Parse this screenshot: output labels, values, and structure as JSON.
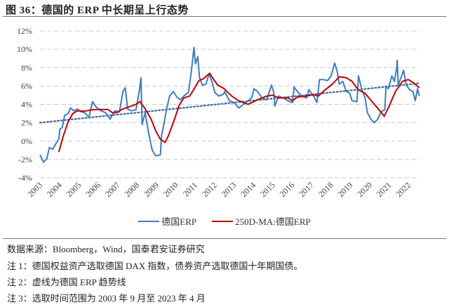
{
  "title": "图 36：德国的 ERP 中长期呈上行态势",
  "chart_data": {
    "type": "line",
    "title": "",
    "xlabel": "",
    "ylabel": "",
    "ylim": [
      -4,
      12
    ],
    "xlim": [
      2003.75,
      2023.33
    ],
    "y_ticks": [
      "-4%",
      "-2%",
      "0%",
      "2%",
      "4%",
      "6%",
      "8%",
      "10%",
      "12%"
    ],
    "y_tick_values": [
      -4,
      -2,
      0,
      2,
      4,
      6,
      8,
      10,
      12
    ],
    "x_ticks": [
      "2003",
      "2004",
      "2005",
      "2006",
      "2007",
      "2008",
      "2009",
      "2010",
      "2011",
      "2012",
      "2013",
      "2014",
      "2015",
      "2016",
      "2017",
      "2018",
      "2019",
      "2020",
      "2021",
      "2022"
    ],
    "grid": "horizontal dashed",
    "legend_position": "bottom",
    "series": [
      {
        "name": "德国ERP",
        "color": "#3c7cc0",
        "points": [
          [
            2003.75,
            -1.5
          ],
          [
            2003.93,
            -2.3
          ],
          [
            2004.11,
            -1.9
          ],
          [
            2004.23,
            -0.7
          ],
          [
            2004.41,
            -0.9
          ],
          [
            2004.59,
            -0.2
          ],
          [
            2004.72,
            0.2
          ],
          [
            2004.78,
            1.3
          ],
          [
            2004.9,
            1.5
          ],
          [
            2005.02,
            2.8
          ],
          [
            2005.2,
            3.0
          ],
          [
            2005.32,
            3.6
          ],
          [
            2005.5,
            3.3
          ],
          [
            2005.68,
            3.5
          ],
          [
            2005.86,
            3.2
          ],
          [
            2006.04,
            3.1
          ],
          [
            2006.28,
            2.6
          ],
          [
            2006.46,
            4.3
          ],
          [
            2006.65,
            3.7
          ],
          [
            2006.89,
            3.3
          ],
          [
            2007.13,
            3.1
          ],
          [
            2007.37,
            2.4
          ],
          [
            2007.61,
            3.3
          ],
          [
            2007.85,
            3.2
          ],
          [
            2008.03,
            5.4
          ],
          [
            2008.15,
            5.8
          ],
          [
            2008.27,
            3.5
          ],
          [
            2008.45,
            3.3
          ],
          [
            2008.7,
            3.4
          ],
          [
            2008.88,
            5.5
          ],
          [
            2008.96,
            6.9
          ],
          [
            2009.02,
            1.8
          ],
          [
            2009.18,
            3.1
          ],
          [
            2009.36,
            0.8
          ],
          [
            2009.54,
            -1.0
          ],
          [
            2009.72,
            -1.6
          ],
          [
            2009.96,
            -1.5
          ],
          [
            2010.02,
            0.6
          ],
          [
            2010.14,
            1.8
          ],
          [
            2010.29,
            3.6
          ],
          [
            2010.44,
            4.9
          ],
          [
            2010.63,
            5.4
          ],
          [
            2010.81,
            4.8
          ],
          [
            2010.99,
            4.5
          ],
          [
            2011.17,
            4.9
          ],
          [
            2011.41,
            5.3
          ],
          [
            2011.57,
            7.8
          ],
          [
            2011.69,
            10.2
          ],
          [
            2011.77,
            8.4
          ],
          [
            2011.89,
            9.2
          ],
          [
            2011.98,
            6.9
          ],
          [
            2012.13,
            6.1
          ],
          [
            2012.31,
            6.2
          ],
          [
            2012.47,
            7.3
          ],
          [
            2012.62,
            6.5
          ],
          [
            2012.77,
            5.3
          ],
          [
            2012.98,
            4.9
          ],
          [
            2013.22,
            5.1
          ],
          [
            2013.28,
            5.4
          ],
          [
            2013.52,
            4.4
          ],
          [
            2013.76,
            4.2
          ],
          [
            2014.0,
            3.6
          ],
          [
            2014.25,
            4.0
          ],
          [
            2014.49,
            4.4
          ],
          [
            2014.67,
            4.7
          ],
          [
            2014.79,
            5.7
          ],
          [
            2014.97,
            5.4
          ],
          [
            2015.21,
            4.7
          ],
          [
            2015.45,
            4.5
          ],
          [
            2015.69,
            6.1
          ],
          [
            2015.81,
            5.3
          ],
          [
            2015.87,
            3.8
          ],
          [
            2016.05,
            4.9
          ],
          [
            2016.3,
            4.7
          ],
          [
            2016.54,
            4.4
          ],
          [
            2016.78,
            4.2
          ],
          [
            2016.86,
            5.9
          ],
          [
            2017.02,
            5.4
          ],
          [
            2017.26,
            4.9
          ],
          [
            2017.5,
            4.7
          ],
          [
            2017.62,
            5.6
          ],
          [
            2017.86,
            4.9
          ],
          [
            2018.04,
            4.2
          ],
          [
            2018.17,
            6.7
          ],
          [
            2018.35,
            6.7
          ],
          [
            2018.59,
            6.6
          ],
          [
            2018.77,
            7.1
          ],
          [
            2018.95,
            8.5
          ],
          [
            2019.07,
            7.7
          ],
          [
            2019.19,
            6.2
          ],
          [
            2019.37,
            6.5
          ],
          [
            2019.55,
            5.4
          ],
          [
            2019.73,
            5.2
          ],
          [
            2019.85,
            4.4
          ],
          [
            2020.1,
            4.3
          ],
          [
            2020.18,
            7.1
          ],
          [
            2020.34,
            5.7
          ],
          [
            2020.52,
            4.7
          ],
          [
            2020.64,
            3.1
          ],
          [
            2020.82,
            2.4
          ],
          [
            2021.0,
            2.0
          ],
          [
            2021.18,
            2.4
          ],
          [
            2021.3,
            3.0
          ],
          [
            2021.42,
            3.3
          ],
          [
            2021.54,
            3.4
          ],
          [
            2021.6,
            6.0
          ],
          [
            2021.72,
            5.7
          ],
          [
            2021.9,
            7.1
          ],
          [
            2022.03,
            6.5
          ],
          [
            2022.15,
            8.0
          ],
          [
            2022.18,
            8.8
          ],
          [
            2022.23,
            6.1
          ],
          [
            2022.39,
            7.0
          ],
          [
            2022.51,
            7.7
          ],
          [
            2022.63,
            6.2
          ],
          [
            2022.81,
            5.6
          ],
          [
            2022.99,
            5.4
          ],
          [
            2023.11,
            4.4
          ],
          [
            2023.23,
            5.7
          ],
          [
            2023.32,
            4.9
          ]
        ]
      },
      {
        "name": "250D-MA:德国ERP",
        "color": "#c00000",
        "points": [
          [
            2004.72,
            -1.2
          ],
          [
            2004.96,
            0.6
          ],
          [
            2005.2,
            2.1
          ],
          [
            2005.44,
            3.0
          ],
          [
            2005.68,
            3.3
          ],
          [
            2006.04,
            3.25
          ],
          [
            2006.4,
            3.4
          ],
          [
            2006.89,
            3.45
          ],
          [
            2007.25,
            3.45
          ],
          [
            2007.49,
            3.1
          ],
          [
            2007.73,
            3.1
          ],
          [
            2007.97,
            3.45
          ],
          [
            2008.45,
            3.8
          ],
          [
            2008.7,
            4.0
          ],
          [
            2008.91,
            4.3
          ],
          [
            2009.18,
            3.5
          ],
          [
            2009.48,
            2.4
          ],
          [
            2009.72,
            1.1
          ],
          [
            2009.96,
            0.2
          ],
          [
            2010.2,
            -0.15
          ],
          [
            2010.38,
            0.6
          ],
          [
            2010.69,
            2.4
          ],
          [
            2010.93,
            3.9
          ],
          [
            2011.17,
            4.7
          ],
          [
            2011.47,
            4.9
          ],
          [
            2011.71,
            5.7
          ],
          [
            2011.95,
            6.6
          ],
          [
            2012.19,
            6.8
          ],
          [
            2012.5,
            7.4
          ],
          [
            2012.68,
            6.8
          ],
          [
            2012.92,
            6.1
          ],
          [
            2013.22,
            5.75
          ],
          [
            2013.64,
            4.9
          ],
          [
            2014.0,
            4.4
          ],
          [
            2014.49,
            4.0
          ],
          [
            2014.97,
            4.5
          ],
          [
            2015.45,
            4.9
          ],
          [
            2015.75,
            5.0
          ],
          [
            2016.05,
            4.7
          ],
          [
            2016.54,
            4.7
          ],
          [
            2016.78,
            4.4
          ],
          [
            2017.02,
            4.8
          ],
          [
            2017.5,
            4.9
          ],
          [
            2017.86,
            5.05
          ],
          [
            2018.1,
            4.9
          ],
          [
            2018.47,
            5.6
          ],
          [
            2018.83,
            6.2
          ],
          [
            2019.19,
            7.0
          ],
          [
            2019.55,
            6.9
          ],
          [
            2019.85,
            6.5
          ],
          [
            2020.16,
            5.6
          ],
          [
            2020.52,
            5.2
          ],
          [
            2020.88,
            4.3
          ],
          [
            2021.24,
            3.4
          ],
          [
            2021.51,
            2.7
          ],
          [
            2021.78,
            3.9
          ],
          [
            2022.09,
            5.4
          ],
          [
            2022.45,
            6.5
          ],
          [
            2022.75,
            6.7
          ],
          [
            2023.05,
            6.3
          ],
          [
            2023.32,
            5.8
          ]
        ]
      },
      {
        "role": "trendline",
        "style": "dotted",
        "color": "#3c6aa8",
        "points": [
          [
            2003.75,
            2.0
          ],
          [
            2023.33,
            6.3
          ]
        ]
      }
    ]
  },
  "legend": {
    "erp": "德国ERP",
    "ma": "250D-MA:德国ERP"
  },
  "notes": {
    "source": "数据来源：Bloomberg，Wind，国泰君安证券研究",
    "note1": "注 1：德国权益资产选取德国 DAX 指数，债券资产选取德国十年期国债。",
    "note2": "注 2：虚线为德国 ERP 趋势线",
    "note3": "注 3：选取时间范围为 2003 年 9 月至 2023 年 4 月"
  }
}
